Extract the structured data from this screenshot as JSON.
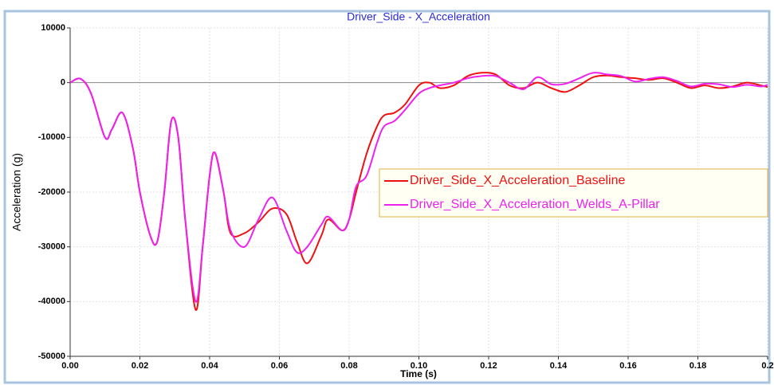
{
  "chart_data": {
    "type": "line",
    "title": "Driver_Side - X_Acceleration",
    "xlabel": "Time (s)",
    "ylabel": "Acceleration (g)",
    "x": [
      0,
      0.003,
      0.006,
      0.01,
      0.012,
      0.015,
      0.018,
      0.02,
      0.023,
      0.025,
      0.027,
      0.029,
      0.031,
      0.033,
      0.036,
      0.038,
      0.04,
      0.0415,
      0.044,
      0.046,
      0.05,
      0.054,
      0.058,
      0.062,
      0.065,
      0.068,
      0.072,
      0.074,
      0.078,
      0.08,
      0.082,
      0.085,
      0.088,
      0.09,
      0.093,
      0.096,
      0.1,
      0.103,
      0.106,
      0.11,
      0.114,
      0.118,
      0.122,
      0.126,
      0.13,
      0.134,
      0.138,
      0.142,
      0.146,
      0.15,
      0.154,
      0.158,
      0.162,
      0.166,
      0.17,
      0.174,
      0.178,
      0.182,
      0.186,
      0.19,
      0.194,
      0.198,
      0.2
    ],
    "series": [
      {
        "name": "Driver_Side_X_Acceleration_Baseline",
        "color": "#ee1111",
        "values": [
          0,
          700,
          -2000,
          -10000,
          -8500,
          -5500,
          -12000,
          -20000,
          -28000,
          -29000,
          -20000,
          -7000,
          -10000,
          -25000,
          -41500,
          -30000,
          -17000,
          -12800,
          -20000,
          -27500,
          -27500,
          -25500,
          -23000,
          -24000,
          -29000,
          -33000,
          -28000,
          -25000,
          -27000,
          -25000,
          -20000,
          -13000,
          -8000,
          -6000,
          -5500,
          -4000,
          -500,
          0,
          -1000,
          -500,
          1200,
          1800,
          1500,
          -500,
          -1000,
          0,
          -1000,
          -1700,
          -500,
          1000,
          1300,
          1000,
          800,
          500,
          800,
          0,
          -1000,
          -500,
          -1000,
          -700,
          0,
          -500,
          -800
        ]
      },
      {
        "name": "Driver_Side_X_Acceleration_Welds_A-Pillar",
        "color": "#ee22ee",
        "values": [
          0,
          700,
          -2000,
          -10000,
          -8500,
          -5500,
          -12000,
          -20000,
          -28000,
          -29000,
          -20000,
          -7000,
          -10000,
          -25000,
          -40000,
          -30000,
          -17000,
          -12800,
          -20000,
          -27000,
          -30000,
          -25000,
          -21000,
          -27000,
          -31000,
          -30000,
          -26000,
          -24500,
          -27000,
          -25000,
          -19000,
          -17000,
          -11000,
          -8000,
          -7000,
          -5000,
          -2000,
          -1000,
          -500,
          0,
          800,
          1200,
          1200,
          0,
          -1200,
          1000,
          -300,
          -200,
          800,
          1800,
          1500,
          1200,
          200,
          700,
          1000,
          300,
          -700,
          -200,
          -300,
          -800,
          -400,
          -700,
          -400
        ]
      }
    ],
    "xlim": [
      0,
      0.2
    ],
    "xticks": [
      {
        "value": 0,
        "label": "0.00"
      },
      {
        "value": 0.02,
        "label": "0.02"
      },
      {
        "value": 0.04,
        "label": "0.04"
      },
      {
        "value": 0.06,
        "label": "0.06"
      },
      {
        "value": 0.08,
        "label": "0.08"
      },
      {
        "value": 0.1,
        "label": "0.10"
      },
      {
        "value": 0.12,
        "label": "0.12"
      },
      {
        "value": 0.14,
        "label": "0.14"
      },
      {
        "value": 0.16,
        "label": "0.16"
      },
      {
        "value": 0.18,
        "label": "0.18"
      },
      {
        "value": 0.2,
        "label": "0.2"
      }
    ],
    "ylim": [
      -50000,
      10000
    ],
    "yticks": [
      10000,
      0,
      -10000,
      -20000,
      -30000,
      -40000,
      -50000
    ],
    "grid": true,
    "legend": "right"
  }
}
